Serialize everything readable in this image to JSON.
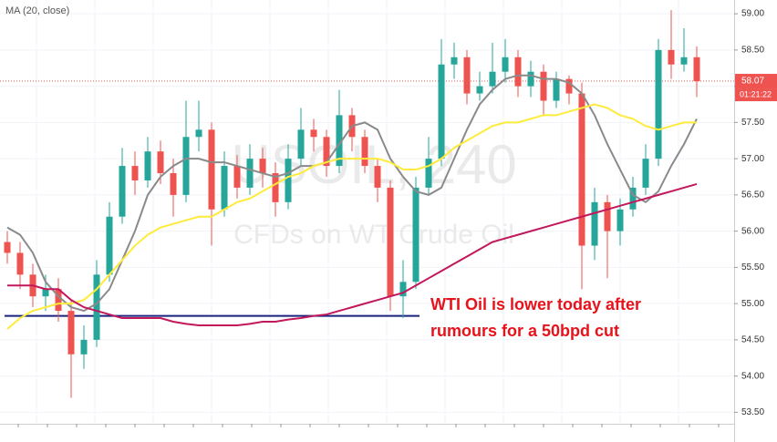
{
  "chart_data": {
    "type": "candlestick",
    "watermark": "USOIL, 240",
    "watermark_subtitle": "CFDs on WT Crude Oil",
    "annotation": [
      "WTI Oil is lower today after",
      "rumours for a 50bpd cut"
    ],
    "annotation_color": "#e8121a",
    "up_color": "#26a69a",
    "down_color": "#ef5350",
    "open": [
      55.85,
      55.7,
      55.4,
      55.1,
      55.2,
      54.9,
      54.3,
      54.5,
      55.4,
      56.2,
      56.9,
      56.7,
      57.1,
      56.8,
      56.5,
      57.3,
      57.4,
      56.3,
      56.9,
      56.6,
      57.0,
      56.8,
      56.4,
      57.0,
      57.4,
      57.3,
      56.9,
      57.6,
      57.3,
      56.9,
      56.6,
      55.1,
      55.3,
      56.6,
      57.0,
      58.3,
      58.4,
      57.9,
      58.0,
      58.2,
      58.4,
      58.0,
      58.2,
      57.8,
      58.1,
      57.9,
      55.8,
      56.4,
      56.0,
      56.3,
      56.6,
      57.0,
      58.5,
      58.3,
      58.4
    ],
    "high": [
      56.0,
      55.85,
      55.55,
      55.4,
      55.35,
      55.05,
      54.7,
      55.6,
      56.4,
      57.15,
      57.1,
      57.3,
      57.25,
      57.0,
      57.8,
      57.8,
      57.5,
      57.1,
      57.05,
      57.2,
      57.15,
      56.95,
      57.2,
      57.7,
      57.55,
      57.4,
      57.95,
      57.7,
      57.4,
      57.0,
      56.7,
      55.6,
      56.75,
      57.3,
      58.65,
      58.6,
      58.5,
      58.2,
      58.6,
      58.65,
      58.5,
      58.35,
      58.3,
      58.2,
      58.15,
      58.05,
      56.6,
      56.5,
      56.45,
      56.75,
      57.2,
      58.65,
      59.05,
      58.8,
      58.55
    ],
    "low": [
      55.55,
      55.2,
      54.95,
      54.9,
      54.75,
      53.7,
      54.1,
      54.4,
      55.3,
      56.1,
      56.5,
      56.6,
      56.65,
      56.2,
      56.4,
      57.1,
      55.8,
      56.2,
      56.45,
      56.5,
      56.6,
      56.2,
      56.3,
      56.9,
      57.1,
      56.75,
      56.8,
      57.1,
      56.8,
      56.4,
      54.9,
      54.8,
      55.2,
      56.5,
      56.9,
      58.1,
      57.75,
      57.8,
      57.9,
      58.05,
      57.85,
      57.85,
      57.6,
      57.7,
      57.75,
      55.2,
      55.6,
      55.35,
      55.8,
      56.2,
      56.5,
      56.9,
      58.1,
      58.2,
      57.85
    ],
    "close": [
      55.7,
      55.4,
      55.1,
      55.2,
      54.9,
      54.3,
      54.5,
      55.4,
      56.2,
      56.9,
      56.7,
      57.1,
      56.8,
      56.5,
      57.3,
      57.4,
      56.3,
      56.9,
      56.6,
      57.0,
      56.8,
      56.4,
      57.0,
      57.4,
      57.3,
      56.9,
      57.6,
      57.3,
      56.9,
      56.6,
      55.1,
      55.3,
      56.6,
      57.0,
      58.3,
      58.4,
      57.9,
      58.0,
      58.2,
      58.4,
      58.0,
      58.2,
      57.8,
      58.1,
      57.9,
      55.8,
      56.4,
      56.0,
      56.3,
      56.6,
      57.0,
      58.5,
      58.3,
      58.4,
      58.07
    ],
    "series": [
      {
        "name": "MA (20, close)",
        "color": "#8a8a8a",
        "values": [
          56.05,
          55.95,
          55.7,
          55.3,
          55.1,
          54.95,
          54.9,
          55.0,
          55.2,
          55.6,
          56.0,
          56.5,
          56.75,
          56.9,
          57.0,
          57.0,
          56.95,
          56.95,
          56.9,
          56.85,
          56.8,
          56.75,
          56.8,
          56.9,
          56.9,
          56.95,
          57.2,
          57.45,
          57.5,
          57.4,
          57.0,
          56.75,
          56.55,
          56.5,
          56.6,
          57.0,
          57.4,
          57.75,
          57.95,
          58.1,
          58.15,
          58.15,
          58.1,
          58.1,
          58.05,
          57.9,
          57.6,
          57.2,
          56.85,
          56.5,
          56.4,
          56.55,
          56.9,
          57.2,
          57.55
        ]
      },
      {
        "color": "#ffeb3b",
        "values": [
          54.65,
          54.8,
          54.9,
          54.95,
          55.0,
          55.0,
          55.05,
          55.2,
          55.4,
          55.6,
          55.8,
          55.95,
          56.05,
          56.1,
          56.15,
          56.2,
          56.2,
          56.3,
          56.4,
          56.45,
          56.55,
          56.65,
          56.75,
          56.8,
          56.9,
          56.95,
          57.0,
          57.0,
          57.0,
          57.0,
          56.95,
          56.85,
          56.85,
          56.9,
          57.0,
          57.15,
          57.25,
          57.35,
          57.45,
          57.5,
          57.5,
          57.55,
          57.6,
          57.6,
          57.65,
          57.7,
          57.75,
          57.7,
          57.6,
          57.55,
          57.45,
          57.4,
          57.45,
          57.5,
          57.5
        ]
      },
      {
        "color": "#c2185b",
        "values": [
          55.25,
          55.25,
          55.25,
          55.2,
          55.2,
          55.05,
          54.95,
          54.9,
          54.85,
          54.8,
          54.8,
          54.8,
          54.8,
          54.75,
          54.72,
          54.7,
          54.7,
          54.7,
          54.7,
          54.72,
          54.75,
          54.75,
          54.78,
          54.8,
          54.83,
          54.85,
          54.9,
          54.95,
          55.0,
          55.05,
          55.1,
          55.15,
          55.25,
          55.35,
          55.45,
          55.55,
          55.65,
          55.75,
          55.85,
          55.9,
          55.95,
          56.0,
          56.05,
          56.1,
          56.15,
          56.2,
          56.25,
          56.3,
          56.35,
          56.4,
          56.45,
          56.5,
          56.55,
          56.6,
          56.65
        ]
      }
    ],
    "support": 54.83,
    "support_color": "#1a237e",
    "last_price": 58.07,
    "countdown": "01:21:22",
    "last_price_color": "#ef5350",
    "ylim": [
      53.09,
      59.19
    ],
    "yticks": [
      {
        "value": 53.5,
        "label": "53.50"
      },
      {
        "value": 54,
        "label": "54.00"
      },
      {
        "value": 54.5,
        "label": "54.50"
      },
      {
        "value": 55,
        "label": "55.00"
      },
      {
        "value": 55.5,
        "label": "55.50"
      },
      {
        "value": 56,
        "label": "56.00"
      },
      {
        "value": 56.5,
        "label": "56.50"
      },
      {
        "value": 57,
        "label": "57.00"
      },
      {
        "value": 57.5,
        "label": "57.50"
      },
      {
        "value": 58,
        "label": "58.00"
      },
      {
        "value": 58.5,
        "label": "58.50"
      },
      {
        "value": 59,
        "label": "59.00"
      }
    ],
    "grid": true
  }
}
